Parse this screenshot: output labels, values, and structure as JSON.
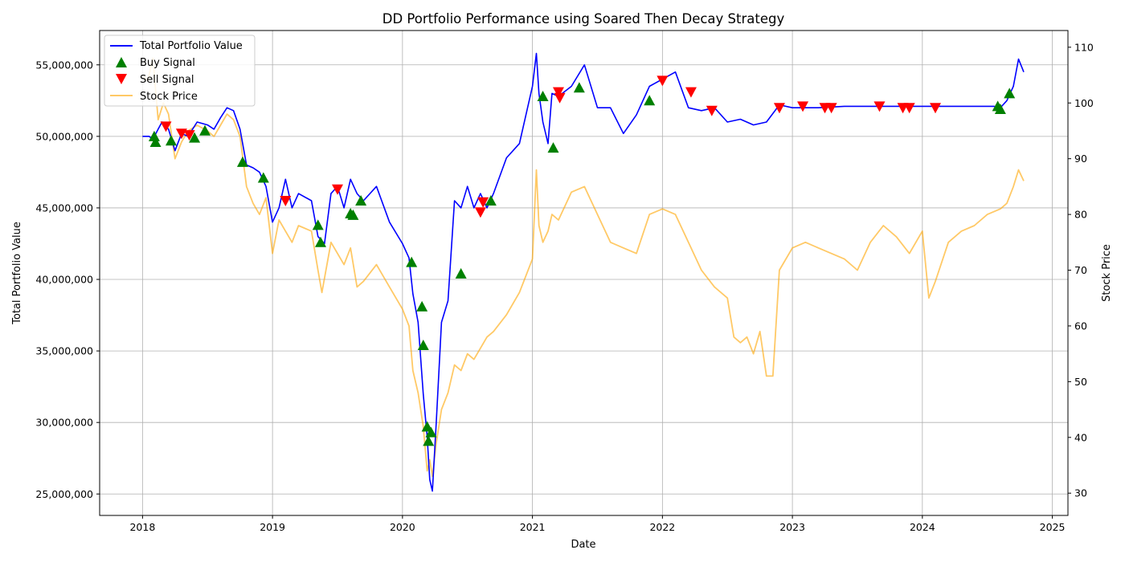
{
  "chart_data": {
    "type": "line",
    "title": "DD Portfolio Performance using Soared Then Decay Strategy",
    "xlabel": "Date",
    "ylabel": "Total Portfolio Value",
    "y2label": "Stock Price",
    "x_ticks": [
      "2018",
      "2019",
      "2020",
      "2021",
      "2022",
      "2023",
      "2024",
      "2025"
    ],
    "y_ticks": [
      "25,000,000",
      "30,000,000",
      "35,000,000",
      "40,000,000",
      "45,000,000",
      "50,000,000",
      "55,000,000"
    ],
    "y2_ticks": [
      "30",
      "40",
      "50",
      "60",
      "70",
      "80",
      "90",
      "100",
      "110"
    ],
    "xlim": [
      2017.67,
      2025.12
    ],
    "ylim": [
      23500000,
      57400000
    ],
    "y2lim": [
      26,
      113
    ],
    "grid": true,
    "legend": {
      "placement": "top-left",
      "entries": [
        "Total Portfolio Value",
        "Buy Signal",
        "Sell Signal",
        "Stock Price"
      ]
    },
    "colors": {
      "portfolio": "#0000ff",
      "stock": "#ffa500",
      "buy": "#008000",
      "sell": "#ff0000"
    },
    "series": [
      {
        "name": "Total Portfolio Value",
        "axis": "left",
        "x": [
          2018.0,
          2018.05,
          2018.08,
          2018.12,
          2018.15,
          2018.2,
          2018.25,
          2018.3,
          2018.35,
          2018.42,
          2018.5,
          2018.55,
          2018.6,
          2018.65,
          2018.7,
          2018.75,
          2018.8,
          2018.85,
          2018.9,
          2018.95,
          2019.0,
          2019.05,
          2019.1,
          2019.15,
          2019.2,
          2019.3,
          2019.35,
          2019.4,
          2019.45,
          2019.5,
          2019.55,
          2019.6,
          2019.65,
          2019.7,
          2019.8,
          2019.9,
          2020.0,
          2020.05,
          2020.08,
          2020.12,
          2020.16,
          2020.19,
          2020.21,
          2020.23,
          2020.26,
          2020.3,
          2020.35,
          2020.4,
          2020.45,
          2020.5,
          2020.55,
          2020.6,
          2020.65,
          2020.7,
          2020.8,
          2020.9,
          2021.0,
          2021.03,
          2021.05,
          2021.08,
          2021.12,
          2021.15,
          2021.2,
          2021.3,
          2021.4,
          2021.5,
          2021.6,
          2021.7,
          2021.8,
          2021.9,
          2022.0,
          2022.1,
          2022.2,
          2022.3,
          2022.4,
          2022.5,
          2022.6,
          2022.7,
          2022.8,
          2022.9,
          2023.0,
          2023.2,
          2023.4,
          2023.6,
          2023.8,
          2024.0,
          2024.2,
          2024.4,
          2024.55,
          2024.6,
          2024.65,
          2024.7,
          2024.74,
          2024.78
        ],
        "y": [
          50000000,
          50000000,
          49800000,
          50500000,
          51000000,
          50500000,
          49000000,
          50200000,
          50000000,
          51000000,
          50800000,
          50500000,
          51300000,
          52000000,
          51800000,
          50500000,
          48000000,
          47800000,
          47500000,
          46500000,
          44000000,
          45000000,
          47000000,
          45000000,
          46000000,
          45500000,
          43000000,
          42500000,
          46000000,
          46500000,
          45000000,
          47000000,
          46000000,
          45500000,
          46500000,
          44000000,
          42500000,
          41500000,
          39000000,
          37000000,
          32000000,
          29000000,
          26000000,
          25200000,
          30000000,
          37000000,
          38500000,
          45500000,
          45000000,
          46500000,
          45000000,
          46000000,
          45000000,
          46000000,
          48500000,
          49500000,
          53500000,
          55800000,
          53000000,
          51000000,
          49500000,
          53000000,
          52800000,
          53500000,
          55000000,
          52000000,
          52000000,
          50200000,
          51500000,
          53500000,
          54000000,
          54500000,
          52000000,
          51800000,
          52000000,
          51000000,
          51200000,
          50800000,
          51000000,
          52200000,
          52000000,
          52000000,
          52100000,
          52100000,
          52100000,
          52100000,
          52100000,
          52100000,
          52100000,
          52000000,
          52500000,
          53500000,
          55400000,
          54500000
        ]
      },
      {
        "name": "Stock Price",
        "axis": "right",
        "x": [
          2018.0,
          2018.04,
          2018.08,
          2018.12,
          2018.16,
          2018.2,
          2018.25,
          2018.3,
          2018.35,
          2018.42,
          2018.5,
          2018.55,
          2018.6,
          2018.65,
          2018.7,
          2018.75,
          2018.8,
          2018.85,
          2018.9,
          2018.95,
          2019.0,
          2019.05,
          2019.1,
          2019.15,
          2019.2,
          2019.3,
          2019.35,
          2019.38,
          2019.45,
          2019.5,
          2019.55,
          2019.6,
          2019.65,
          2019.7,
          2019.8,
          2019.9,
          2020.0,
          2020.05,
          2020.08,
          2020.12,
          2020.16,
          2020.19,
          2020.21,
          2020.23,
          2020.26,
          2020.3,
          2020.35,
          2020.4,
          2020.45,
          2020.5,
          2020.55,
          2020.6,
          2020.65,
          2020.7,
          2020.8,
          2020.9,
          2021.0,
          2021.03,
          2021.05,
          2021.08,
          2021.12,
          2021.15,
          2021.2,
          2021.3,
          2021.4,
          2021.5,
          2021.6,
          2021.7,
          2021.8,
          2021.9,
          2022.0,
          2022.1,
          2022.2,
          2022.3,
          2022.4,
          2022.5,
          2022.55,
          2022.6,
          2022.65,
          2022.7,
          2022.75,
          2022.8,
          2022.85,
          2022.9,
          2023.0,
          2023.1,
          2023.2,
          2023.3,
          2023.4,
          2023.5,
          2023.6,
          2023.7,
          2023.8,
          2023.9,
          2024.0,
          2024.05,
          2024.1,
          2024.2,
          2024.3,
          2024.4,
          2024.5,
          2024.6,
          2024.65,
          2024.7,
          2024.74,
          2024.78
        ],
        "y": [
          105,
          104,
          108,
          97,
          100,
          98,
          90,
          93,
          95,
          96,
          95,
          94,
          96,
          98,
          97,
          94,
          85,
          82,
          80,
          83,
          73,
          79,
          77,
          75,
          78,
          77,
          70,
          66,
          75,
          73,
          71,
          74,
          67,
          68,
          71,
          67,
          63,
          60,
          52,
          48,
          42,
          34,
          36,
          33,
          39,
          45,
          48,
          53,
          52,
          55,
          54,
          56,
          58,
          59,
          62,
          66,
          72,
          88,
          78,
          75,
          77,
          80,
          79,
          84,
          85,
          80,
          75,
          74,
          73,
          80,
          81,
          80,
          75,
          70,
          67,
          65,
          58,
          57,
          58,
          55,
          59,
          51,
          51,
          70,
          74,
          75,
          74,
          73,
          72,
          70,
          75,
          78,
          76,
          73,
          77,
          65,
          68,
          75,
          77,
          78,
          80,
          81,
          82,
          85,
          88,
          86
        ]
      }
    ],
    "buy_signals": {
      "name": "Buy Signal",
      "x": [
        2018.09,
        2018.1,
        2018.22,
        2018.4,
        2018.48,
        2018.77,
        2018.93,
        2019.35,
        2019.37,
        2019.6,
        2019.62,
        2019.68,
        2020.07,
        2020.15,
        2020.16,
        2020.19,
        2020.2,
        2020.22,
        2020.45,
        2020.68,
        2021.08,
        2021.16,
        2021.36,
        2021.9,
        2024.58,
        2024.6,
        2024.67
      ],
      "y": [
        50000000,
        49600000,
        49700000,
        49900000,
        50400000,
        48200000,
        47100000,
        43800000,
        42600000,
        44600000,
        44500000,
        45500000,
        41200000,
        38100000,
        35400000,
        29700000,
        28700000,
        29300000,
        40400000,
        45500000,
        52800000,
        49200000,
        53400000,
        52500000,
        52100000,
        51900000,
        53000000
      ]
    },
    "sell_signals": {
      "name": "Sell Signal",
      "x": [
        2018.18,
        2018.3,
        2018.36,
        2019.1,
        2019.5,
        2020.6,
        2020.62,
        2021.2,
        2021.21,
        2022.0,
        2022.22,
        2022.38,
        2022.9,
        2023.08,
        2023.25,
        2023.3,
        2023.67,
        2023.85,
        2023.9,
        2024.1
      ],
      "y": [
        50700000,
        50200000,
        50100000,
        45500000,
        46300000,
        44700000,
        45400000,
        53100000,
        52700000,
        53900000,
        53100000,
        51800000,
        52000000,
        52100000,
        52000000,
        52000000,
        52100000,
        52000000,
        52000000,
        52000000
      ]
    }
  }
}
